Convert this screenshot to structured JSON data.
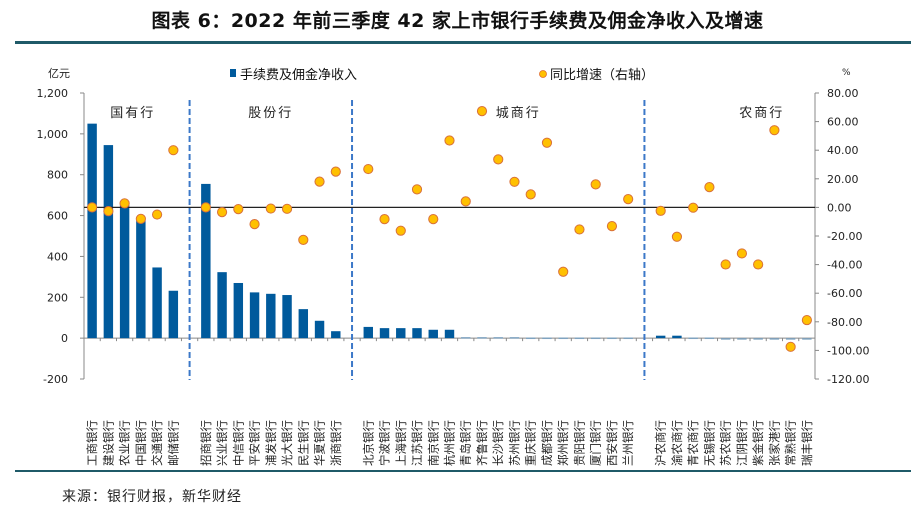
{
  "title": "图表 6：2022 年前三季度 42 家上市银行手续费及佣金净收入及增速",
  "source": "来源：银行财报，新华财经",
  "chart_data": {
    "type": "bar+scatter",
    "title": "图表 6：2022 年前三季度 42 家上市银行手续费及佣金净收入及增速",
    "left_axis": {
      "unit_label": "亿元",
      "range": [
        -200,
        1200
      ],
      "ticks": [
        -200,
        0,
        200,
        400,
        600,
        800,
        1000,
        1200
      ],
      "tick_labels": [
        "-200",
        "0",
        "200",
        "400",
        "600",
        "800",
        "1,000",
        "1,200"
      ]
    },
    "right_axis": {
      "unit_label": "%",
      "range": [
        -120,
        80
      ],
      "ticks": [
        -120,
        -100,
        -80,
        -60,
        -40,
        -20,
        0,
        20,
        40,
        60,
        80
      ],
      "tick_labels": [
        "-120.00",
        "-100.00",
        "-80.00",
        "-60.00",
        "-40.00",
        "-20.00",
        "0.00",
        "20.00",
        "40.00",
        "60.00",
        "80.00"
      ]
    },
    "legend": [
      {
        "name": "手续费及佣金净收入",
        "marker": "square",
        "color": "#005a9c"
      },
      {
        "name": "同比增速（右轴）",
        "marker": "circle",
        "color": "#ffc000",
        "edge": "#e06a2a"
      }
    ],
    "legend_position": "top",
    "colors": {
      "bar": "#005a9c",
      "bar_small": "#7fa3c0",
      "dot_fill": "#ffc000",
      "dot_edge": "#d9713a",
      "separator": "#3c78c8",
      "zero_line": "#222222",
      "axis": "#888888"
    },
    "groups": [
      {
        "label": "国有行",
        "banks": [
          "工商银行",
          "建设银行",
          "农业银行",
          "中国银行",
          "交通银行",
          "邮储银行"
        ],
        "income": [
          1050,
          945,
          665,
          590,
          346,
          232
        ],
        "growth": [
          0.0,
          -2.6,
          2.8,
          -8.0,
          -5.0,
          40.0
        ]
      },
      {
        "label": "股份行",
        "banks": [
          "招商银行",
          "兴业银行",
          "中信银行",
          "平安银行",
          "浦发银行",
          "光大银行",
          "民生银行",
          "华夏银行",
          "浙商银行"
        ],
        "income": [
          755,
          323,
          270,
          224,
          217,
          211,
          142,
          85,
          34
        ],
        "growth": [
          0.0,
          -3.3,
          -1.2,
          -11.7,
          -0.8,
          -1.0,
          -22.7,
          18.0,
          25.0
        ]
      },
      {
        "label": "城商行",
        "banks": [
          "北京银行",
          "宁波银行",
          "上海银行",
          "江苏银行",
          "南京银行",
          "杭州银行",
          "青岛银行",
          "齐鲁银行",
          "长沙银行",
          "苏州银行",
          "重庆银行",
          "成都银行",
          "郑州银行",
          "贵阳银行",
          "厦门银行",
          "西安银行",
          "兰州银行"
        ],
        "income": [
          55,
          49,
          49,
          49,
          41,
          41,
          5,
          5,
          5,
          5,
          3,
          3,
          3,
          3,
          3,
          3,
          3
        ],
        "growth": [
          26.8,
          -8.2,
          -16.3,
          12.6,
          -8.2,
          46.8,
          4.2,
          67.3,
          33.6,
          17.9,
          9.1,
          45.2,
          -45.0,
          -15.4,
          16.1,
          -13.1,
          5.8
        ]
      },
      {
        "label": "农商行",
        "banks": [
          "沪农商行",
          "渝农商行",
          "青农商行",
          "无锡银行",
          "苏农银行",
          "江阴银行",
          "紫金银行",
          "张家港行",
          "常熟银行",
          "瑞丰银行"
        ],
        "income": [
          12,
          12,
          3,
          3,
          -3,
          -3,
          -3,
          -3,
          -3,
          -3
        ],
        "growth": [
          -2.4,
          -20.5,
          -0.2,
          14.2,
          -39.9,
          -32.2,
          -39.9,
          54.0,
          -97.5,
          -78.8
        ]
      }
    ],
    "grid": false
  }
}
